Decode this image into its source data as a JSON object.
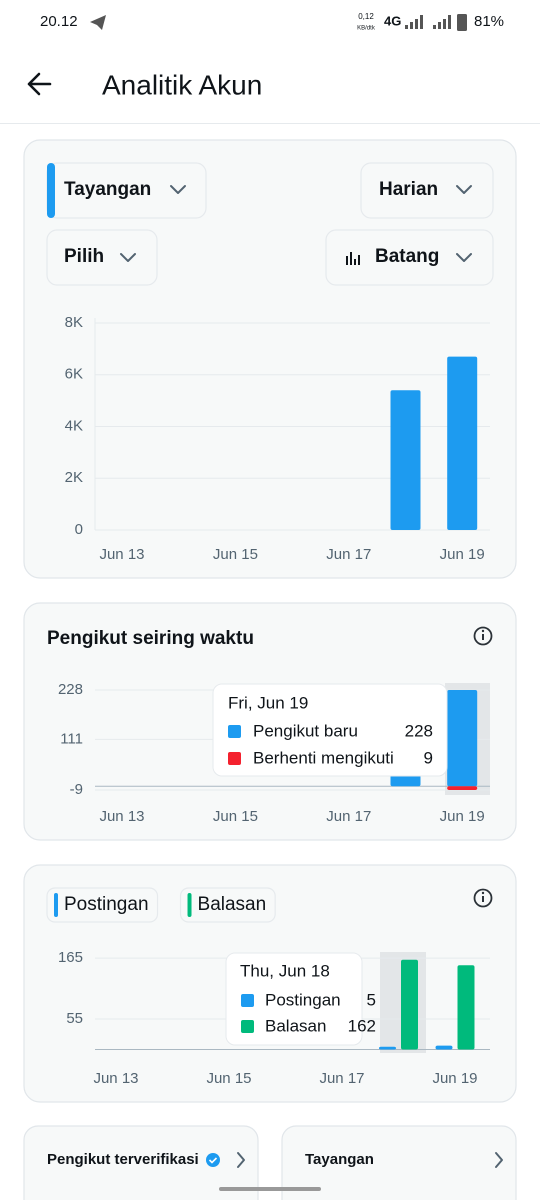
{
  "status_bar": {
    "time": "20.12",
    "net_speed": "0,12",
    "net_unit": "KB/dtk",
    "network": "4G",
    "battery": "81%"
  },
  "header": {
    "title": "Analitik Akun"
  },
  "controls": {
    "metric": "Tayangan",
    "period": "Harian",
    "select": "Pilih",
    "chart_style": "Batang"
  },
  "chart_data": [
    {
      "type": "bar",
      "categories": [
        "Jun 13",
        null,
        "Jun 15",
        null,
        "Jun 17",
        null,
        "Jun 19"
      ],
      "values": [
        0,
        0,
        0,
        0,
        0,
        5400,
        6700
      ],
      "color": "#1d9bf0",
      "ylim": [
        0,
        8000
      ],
      "yticks": [
        0,
        {
          "value": 2000,
          "label": "2K"
        },
        {
          "value": 4000,
          "label": "4K"
        },
        {
          "value": 6000,
          "label": "6K"
        },
        {
          "value": 8000,
          "label": "8K"
        }
      ],
      "grid": true
    },
    {
      "type": "bar",
      "title": "Pengikut seiring waktu",
      "stacked": true,
      "categories": [
        "Jun 13",
        null,
        "Jun 15",
        null,
        "Jun 17",
        null,
        "Jun 19"
      ],
      "series": [
        {
          "name": "Pengikut baru",
          "color": "#1d9bf0",
          "values": [
            0,
            0,
            0,
            0,
            0,
            40,
            228
          ]
        },
        {
          "name": "Berhenti mengikuti",
          "color": "#f4212e",
          "values": [
            0,
            0,
            0,
            0,
            0,
            0,
            -9
          ]
        }
      ],
      "ylim": [
        -9,
        228
      ],
      "yticks": [
        -9,
        111,
        228
      ],
      "grid": true,
      "tooltip": {
        "title": "Fri, Jun 19",
        "items": [
          {
            "name": "Pengikut baru",
            "value": 228
          },
          {
            "name": "Berhenti mengikuti",
            "value": 9
          }
        ]
      }
    },
    {
      "type": "bar",
      "categories": [
        "Jun 13",
        null,
        "Jun 15",
        null,
        "Jun 17",
        null,
        "Jun 19"
      ],
      "series": [
        {
          "name": "Postingan",
          "color": "#1d9bf0",
          "values": [
            0,
            0,
            0,
            0,
            0,
            5,
            7
          ]
        },
        {
          "name": "Balasan",
          "color": "#00ba7c",
          "values": [
            0,
            0,
            0,
            0,
            0,
            162,
            152
          ]
        }
      ],
      "ylim": [
        0,
        170
      ],
      "yticks": [
        55,
        165
      ],
      "grid": true,
      "tooltip": {
        "title": "Thu, Jun 18",
        "items": [
          {
            "name": "Postingan",
            "value": 5
          },
          {
            "name": "Balasan",
            "value": 162
          }
        ]
      }
    }
  ],
  "cards": [
    {
      "title": "Pengikut terverifikasi"
    },
    {
      "title": "Tayangan"
    }
  ]
}
